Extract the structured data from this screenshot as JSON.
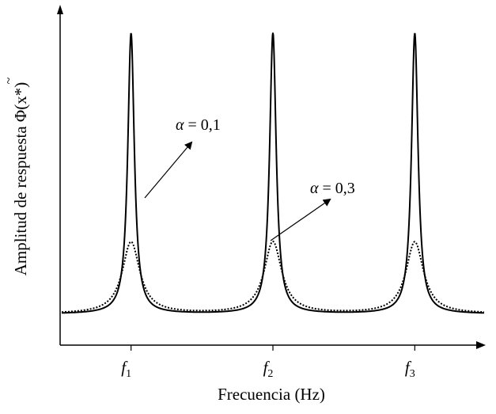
{
  "chart_data": {
    "type": "line",
    "xlabel": "Frecuencia (Hz)",
    "ylabel": "Amplitud de respuesta Φ̃(x*)",
    "ylabel_parts": {
      "text": "Amplitud de respuesta ",
      "symbol": "Φ",
      "arg": "(x*)"
    },
    "xticks": [
      {
        "base": "f",
        "sub": "1",
        "x": 1
      },
      {
        "base": "f",
        "sub": "2",
        "x": 2
      },
      {
        "base": "f",
        "sub": "3",
        "x": 3
      }
    ],
    "xlim": [
      0.5,
      3.5
    ],
    "ylim": [
      0,
      1.0
    ],
    "grid": false,
    "legend": "none",
    "series": [
      {
        "label": "α = 0,1",
        "style": "solid",
        "color": "#000000",
        "baseline": 0.1,
        "peak": 1.0,
        "width": 0.028,
        "peaks_at": [
          1,
          2,
          3
        ]
      },
      {
        "label": "α = 0,3",
        "style": "dotted",
        "color": "#000000",
        "baseline": 0.1,
        "peak": 0.33,
        "width": 0.075,
        "peaks_at": [
          1,
          2,
          3
        ]
      }
    ],
    "annotations": [
      {
        "text_parts": {
          "symbol": "α",
          "rest": " = 0,1"
        },
        "series": 0
      },
      {
        "text_parts": {
          "symbol": "α",
          "rest": " = 0,3"
        },
        "series": 1
      }
    ]
  }
}
